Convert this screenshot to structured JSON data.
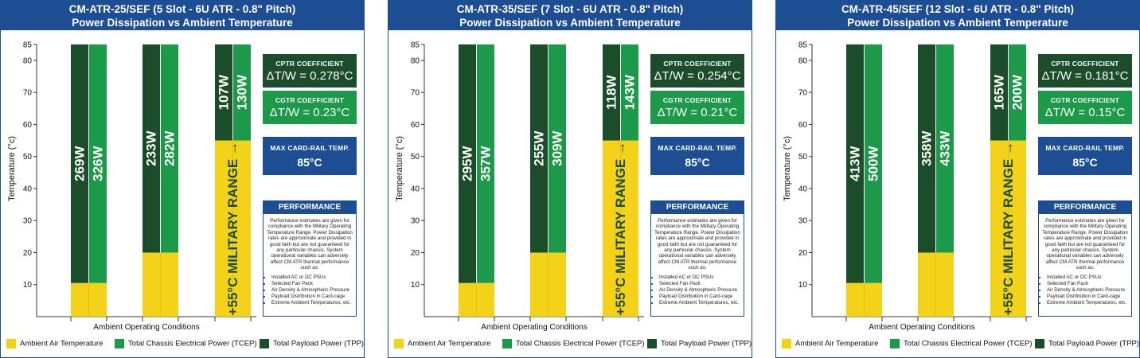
{
  "colors": {
    "ambient": "#f5d21a",
    "tcep": "#1c9a4a",
    "tpp": "#1b4d2a",
    "header": "#1d4e93"
  },
  "shared": {
    "ylabel": "Temperature (°c)",
    "xlabel": "Ambient Operating Conditions",
    "military_label": "+55°C MILITARY RANGE →",
    "cptr_label": "CPTR COEFFICIENT",
    "cgtr_label": "CGTR COEFFICIENT",
    "maxrail_label": "MAX CARD-RAIL TEMP.",
    "maxrail_value": "85°C",
    "perf_title": "PERFORMANCE",
    "perf_text": "Performance estimates are given for compliance with the Military Operating Temperature Range. Power Dissipation rates are approximate and provided in good faith but are not guaranteed for any particular chassis. System operational variables can adversely affect CM ATR thermal performance such as:",
    "perf_items": [
      "Installed AC or DC PSUs",
      "Selected Fan Pack",
      "Air Density & Atmospheric Pressure",
      "Payload Distribution in Card-cage",
      "Extreme Ambient Temperatures, etc."
    ],
    "legend": {
      "ambient": "Ambient Air Temperature",
      "tcep": "Total Chassis Electrical Power (TCEP)",
      "tpp": "Total Payload Power (TPP)"
    }
  },
  "panels": [
    {
      "title1": "CM-ATR-25/SEF (5 Slot - 6U ATR - 0.8\" Pitch)",
      "title2": "Power Dissipation vs Ambient Temperature",
      "cptr_value": "ΔT/W = 0.278°C",
      "cgtr_value": "ΔT/W = 0.23°C"
    },
    {
      "title1": "CM-ATR-35/SEF (7 Slot - 6U ATR - 0.8\" Pitch)",
      "title2": "Power Dissipation vs Ambient Temperature",
      "cptr_value": "ΔT/W = 0.254°C",
      "cgtr_value": "ΔT/W = 0.21°C"
    },
    {
      "title1": "CM-ATR-45/SEF (12 Slot - 6U ATR - 0.8\" Pitch)",
      "title2": "Power Dissipation vs Ambient Temperature",
      "cptr_value": "ΔT/W = 0.181°C",
      "cgtr_value": "ΔT/W = 0.15°C"
    }
  ],
  "chart_data": [
    {
      "type": "bar",
      "title": "CM-ATR-25/SEF (5 Slot - 6U ATR - 0.8\" Pitch) Power Dissipation vs Ambient Temperature",
      "xlabel": "Ambient Operating Conditions",
      "ylabel": "Temperature (°c)",
      "ylim": [
        0,
        85
      ],
      "yticks": [
        10,
        20,
        30,
        40,
        50,
        60,
        70,
        80,
        85
      ],
      "groups": [
        {
          "ambient": 10.5,
          "tpp_label": "269W",
          "tcep_label": "326W"
        },
        {
          "ambient": 20,
          "tpp_label": "233W",
          "tcep_label": "282W"
        },
        {
          "ambient": 55,
          "tpp_label": "107W",
          "tcep_label": "130W",
          "military": true
        }
      ],
      "top": 85,
      "legend_position": "bottom"
    },
    {
      "type": "bar",
      "title": "CM-ATR-35/SEF (7 Slot - 6U ATR - 0.8\" Pitch) Power Dissipation vs Ambient Temperature",
      "xlabel": "Ambient Operating Conditions",
      "ylabel": "Temperature (°c)",
      "ylim": [
        0,
        85
      ],
      "yticks": [
        10,
        20,
        30,
        40,
        50,
        60,
        70,
        80,
        85
      ],
      "groups": [
        {
          "ambient": 10.5,
          "tpp_label": "295W",
          "tcep_label": "357W"
        },
        {
          "ambient": 20,
          "tpp_label": "255W",
          "tcep_label": "309W"
        },
        {
          "ambient": 55,
          "tpp_label": "118W",
          "tcep_label": "143W",
          "military": true
        }
      ],
      "top": 85,
      "legend_position": "bottom"
    },
    {
      "type": "bar",
      "title": "CM-ATR-45/SEF (12 Slot - 6U ATR - 0.8\" Pitch) Power Dissipation vs Ambient Temperature",
      "xlabel": "Ambient Operating Conditions",
      "ylabel": "Temperature (°c)",
      "ylim": [
        0,
        85
      ],
      "yticks": [
        10,
        20,
        30,
        40,
        50,
        60,
        70,
        80,
        85
      ],
      "groups": [
        {
          "ambient": 10.5,
          "tpp_label": "413W",
          "tcep_label": "500W"
        },
        {
          "ambient": 20,
          "tpp_label": "358W",
          "tcep_label": "433W"
        },
        {
          "ambient": 55,
          "tpp_label": "165W",
          "tcep_label": "200W",
          "military": true
        }
      ],
      "top": 85,
      "legend_position": "bottom"
    }
  ]
}
